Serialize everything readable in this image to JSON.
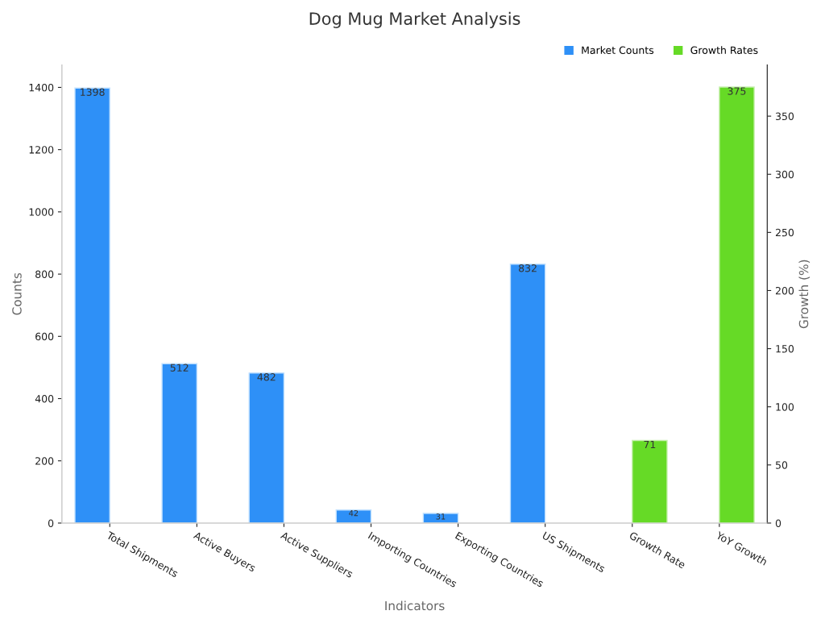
{
  "chart_data": {
    "type": "bar",
    "title": "Dog Mug Market Analysis",
    "xlabel": "Indicators",
    "ylabel": "Counts",
    "y2label": "Growth (%)",
    "categories": [
      "Total Shipments",
      "Active Buyers",
      "Active Suppliers",
      "Importing Countries",
      "Exporting Countries",
      "US Shipments",
      "Growth Rate",
      "YoY Growth"
    ],
    "series": [
      {
        "name": "Market Counts",
        "color": "#2e90f7",
        "values": [
          1398,
          512,
          482,
          42,
          31,
          832,
          null,
          null
        ]
      },
      {
        "name": "Growth Rates",
        "color": "#66da26",
        "axis": "y2",
        "values": [
          null,
          null,
          null,
          null,
          null,
          null,
          71,
          375
        ]
      }
    ],
    "ylim": [
      0,
      1472
    ],
    "yticks": [
      0,
      200,
      400,
      600,
      800,
      1000,
      1200,
      1400
    ],
    "y2lim": [
      0,
      394
    ],
    "y2ticks": [
      0,
      50,
      100,
      150,
      200,
      250,
      300,
      350
    ],
    "data_labels": true,
    "legend": "top right",
    "grid": false
  }
}
